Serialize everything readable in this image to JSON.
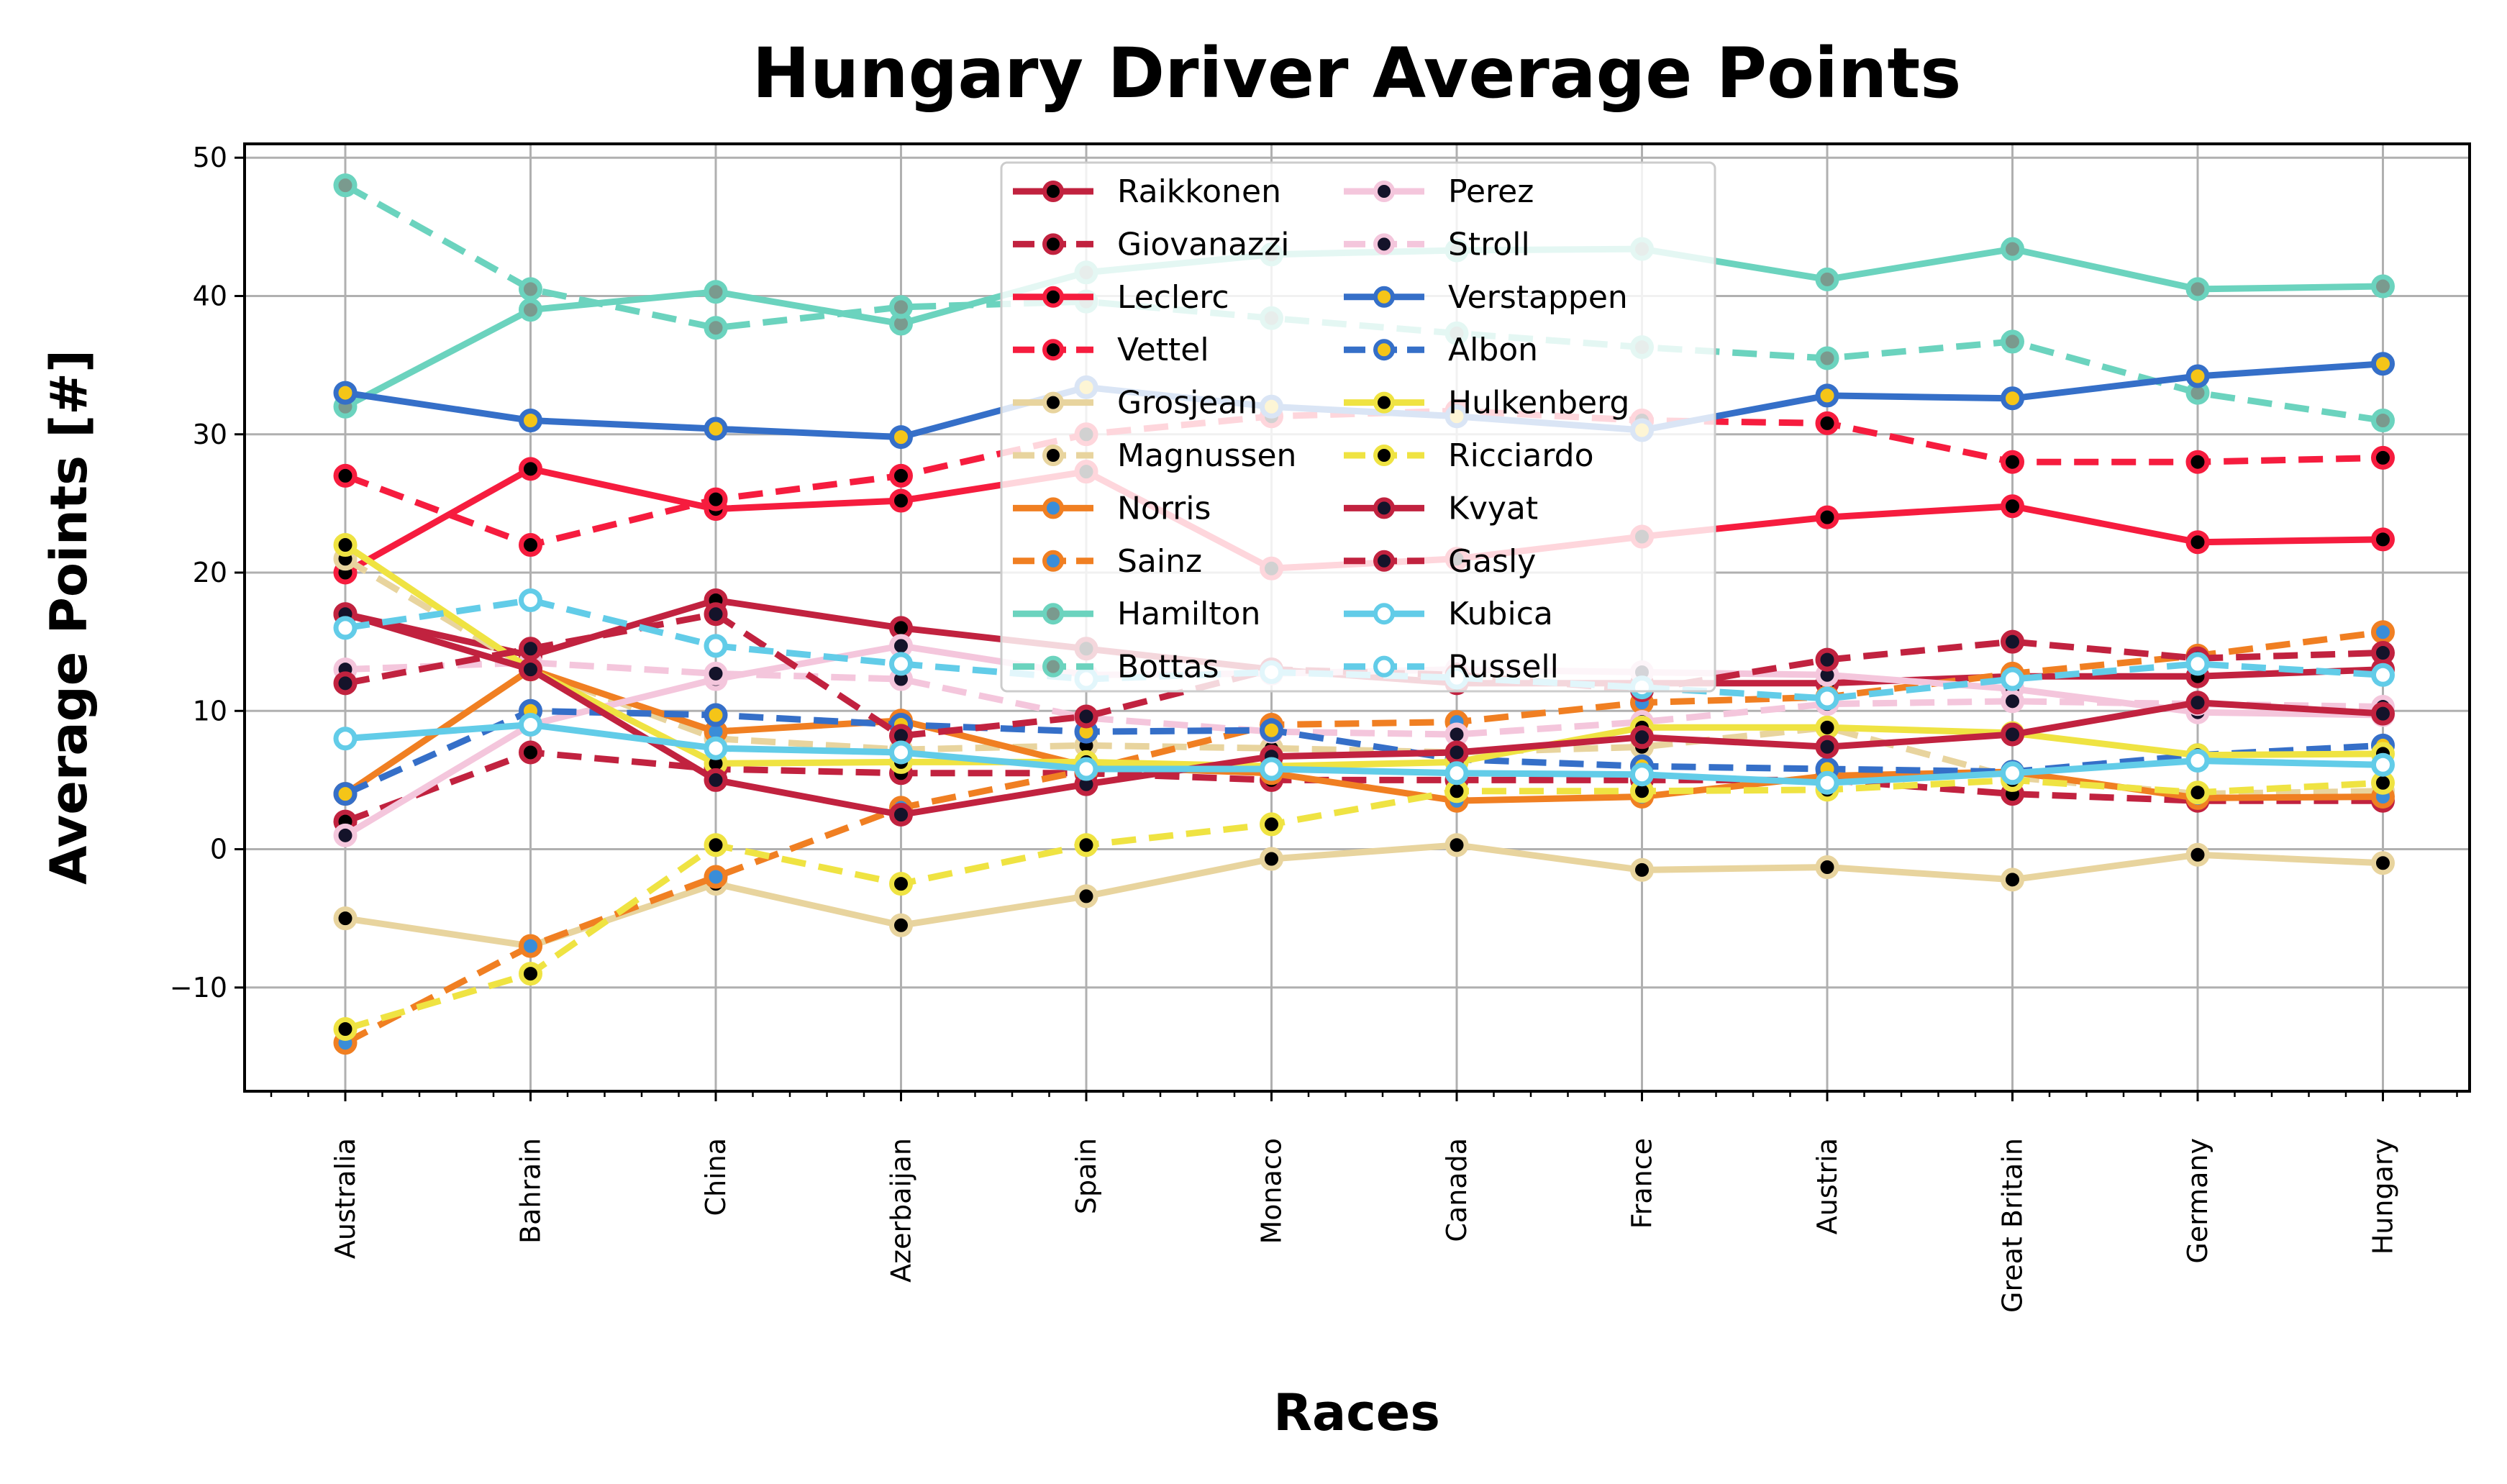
{
  "chart_data": {
    "type": "line",
    "title": "Hungary Driver Average Points",
    "xlabel": "Races",
    "ylabel": "Average Points [#]",
    "ylim": [
      -17.5,
      51
    ],
    "yticks": [
      -10,
      0,
      10,
      20,
      30,
      40,
      50
    ],
    "grid": true,
    "legend_placement": "upper-center",
    "legend_columns": 2,
    "categories": [
      "Australia",
      "Bahrain",
      "China",
      "Azerbaijan",
      "Spain",
      "Monaco",
      "Canada",
      "France",
      "Austria",
      "Great Britain",
      "Germany",
      "Hungary"
    ],
    "series": [
      {
        "name": "Raikkonen",
        "color": "#C1223F",
        "dash": "solid",
        "marker": "#000000",
        "values": [
          17,
          14,
          18,
          16,
          14.5,
          13,
          12,
          12,
          12,
          12.5,
          12.5,
          13
        ]
      },
      {
        "name": "Giovanazzi",
        "color": "#C1223F",
        "dash": "dashed",
        "marker": "#000000",
        "values": [
          2,
          7,
          5.8,
          5.5,
          5.5,
          5,
          5,
          5,
          5,
          4,
          3.5,
          3.5
        ]
      },
      {
        "name": "Leclerc",
        "color": "#F61C3E",
        "dash": "solid",
        "marker": "#000000",
        "values": [
          20,
          27.5,
          24.6,
          25.2,
          27.3,
          20.3,
          21,
          22.6,
          24,
          24.8,
          22.2,
          22.4
        ]
      },
      {
        "name": "Vettel",
        "color": "#F61C3E",
        "dash": "dashed",
        "marker": "#000000",
        "values": [
          27,
          22,
          25.3,
          27,
          30,
          31.3,
          31.7,
          31,
          30.8,
          28,
          28,
          28.3
        ]
      },
      {
        "name": "Grosjean",
        "color": "#E8D49E",
        "dash": "solid",
        "marker": "#000000",
        "values": [
          -5,
          -7,
          -2.5,
          -5.5,
          -3.4,
          -0.7,
          0.3,
          -1.5,
          -1.3,
          -2.2,
          -0.4,
          -1
        ]
      },
      {
        "name": "Magnussen",
        "color": "#E8D49E",
        "dash": "dashed",
        "marker": "#000000",
        "values": [
          21,
          13,
          8,
          7.2,
          7.5,
          7.3,
          7,
          7.4,
          8.8,
          5.2,
          4,
          4.2
        ]
      },
      {
        "name": "Norris",
        "color": "#F07F22",
        "dash": "solid",
        "marker": "#3A8DD8",
        "values": [
          4,
          13,
          8.5,
          9.3,
          6,
          5.5,
          3.5,
          3.8,
          5.3,
          5.6,
          3.7,
          3.8
        ]
      },
      {
        "name": "Sainz",
        "color": "#F07F22",
        "dash": "dashed",
        "marker": "#3A8DD8",
        "values": [
          -14,
          -7,
          -2,
          3,
          5.7,
          9,
          9.2,
          10.6,
          11,
          12.7,
          14,
          15.7
        ]
      },
      {
        "name": "Hamilton",
        "color": "#6BD3BE",
        "dash": "solid",
        "marker": "#7A9A8E",
        "values": [
          32,
          39,
          40.3,
          38,
          41.7,
          43,
          43.3,
          43.4,
          41.2,
          43.4,
          40.5,
          40.7
        ]
      },
      {
        "name": "Bottas",
        "color": "#6BD3BE",
        "dash": "dashed",
        "marker": "#7A9A8E",
        "values": [
          48,
          40.5,
          37.7,
          39.2,
          39.6,
          38.4,
          37.3,
          36.3,
          35.5,
          36.7,
          33,
          31
        ]
      },
      {
        "name": "Perez",
        "color": "#F4C6DC",
        "dash": "solid",
        "marker": "#14132A",
        "values": [
          1,
          9,
          12.3,
          14.7,
          12.6,
          12.7,
          13,
          12.8,
          12.6,
          11.6,
          9.9,
          9.7
        ]
      },
      {
        "name": "Stroll",
        "color": "#F4C6DC",
        "dash": "dashed",
        "marker": "#14132A",
        "values": [
          13,
          13.5,
          12.7,
          12.3,
          9.5,
          8.5,
          8.3,
          9.2,
          10.5,
          10.7,
          10.5,
          10.3
        ]
      },
      {
        "name": "Verstappen",
        "color": "#356FC8",
        "dash": "solid",
        "marker": "#F5C518",
        "values": [
          33,
          31,
          30.4,
          29.8,
          33.4,
          32,
          31.3,
          30.3,
          32.8,
          32.6,
          34.2,
          35.1
        ]
      },
      {
        "name": "Albon",
        "color": "#356FC8",
        "dash": "dashed",
        "marker": "#F5C518",
        "values": [
          4,
          10,
          9.7,
          9,
          8.5,
          8.6,
          6.5,
          6,
          5.8,
          5.6,
          6.8,
          7.5
        ]
      },
      {
        "name": "Hulkenberg",
        "color": "#EFE342",
        "dash": "solid",
        "marker": "#000000",
        "values": [
          22,
          13,
          6.2,
          6.3,
          6.3,
          6,
          6.3,
          8.8,
          8.8,
          8.4,
          6.8,
          6.9
        ]
      },
      {
        "name": "Ricciardo",
        "color": "#EFE342",
        "dash": "dashed",
        "marker": "#000000",
        "values": [
          -13,
          -9,
          0.3,
          -2.5,
          0.3,
          1.8,
          4.2,
          4.2,
          4.3,
          5,
          4.1,
          4.8
        ]
      },
      {
        "name": "Kvyat",
        "color": "#C1223F",
        "dash": "solid",
        "marker": "#14132A",
        "values": [
          17,
          13,
          5,
          2.5,
          4.7,
          6.7,
          7,
          8.1,
          7.4,
          8.3,
          10.6,
          9.8
        ]
      },
      {
        "name": "Gasly",
        "color": "#C1223F",
        "dash": "dashed",
        "marker": "#14132A",
        "values": [
          12,
          14.5,
          17,
          8.2,
          9.6,
          13,
          12.6,
          11.5,
          13.7,
          15,
          13.8,
          14.2
        ]
      },
      {
        "name": "Kubica",
        "color": "#62CCE8",
        "dash": "solid",
        "marker": "#FFFFFF",
        "values": [
          8,
          9,
          7.3,
          7,
          5.8,
          5.8,
          5.5,
          5.4,
          4.8,
          5.5,
          6.4,
          6.1
        ]
      },
      {
        "name": "Russell",
        "color": "#62CCE8",
        "dash": "dashed",
        "marker": "#FFFFFF",
        "values": [
          16,
          18,
          14.7,
          13.4,
          12.3,
          12.8,
          12.4,
          11.7,
          10.9,
          12.3,
          13.4,
          12.6
        ]
      }
    ]
  }
}
